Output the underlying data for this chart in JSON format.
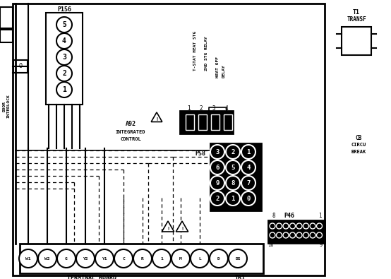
{
  "bg_color": "#ffffff",
  "p156_pins": [
    "5",
    "4",
    "3",
    "2",
    "1"
  ],
  "p58_pins": [
    [
      "3",
      "2",
      "1"
    ],
    [
      "6",
      "5",
      "4"
    ],
    [
      "9",
      "8",
      "7"
    ],
    [
      "2",
      "1",
      "0"
    ]
  ],
  "tb1_labels": [
    "W1",
    "W2",
    "G",
    "Y2",
    "Y1",
    "C",
    "R",
    "1",
    "M",
    "L",
    "D",
    "DS"
  ],
  "relay_pins": [
    "1",
    "2",
    "3",
    "4"
  ]
}
